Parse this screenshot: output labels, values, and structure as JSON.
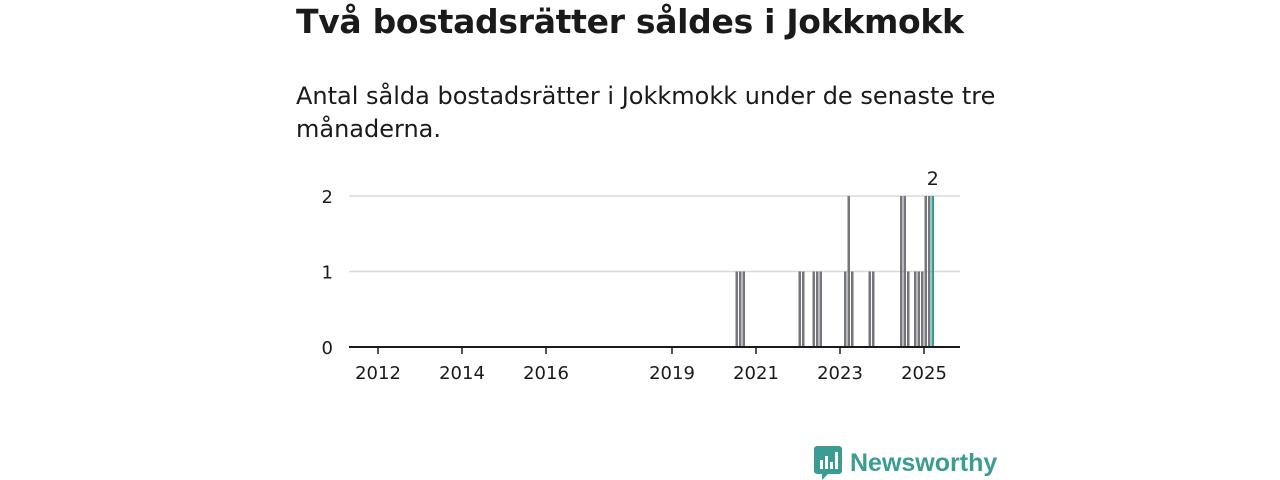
{
  "header": {
    "title": "Två bostadsrätter såldes i Jokkmokk",
    "subtitle": "Antal sålda bostadsrätter i Jokkmokk under de senaste tre månaderna."
  },
  "brand": {
    "name": "Newsworthy",
    "color": "#3a9c92",
    "icon": "chart-bubble-icon"
  },
  "chart_data": {
    "type": "bar",
    "title": "",
    "xlabel": "",
    "ylabel": "",
    "ylim": [
      0,
      2
    ],
    "yticks": [
      "0",
      "1",
      "2"
    ],
    "xticks": [
      "2012",
      "2014",
      "2016",
      "2019",
      "2021",
      "2023",
      "2025"
    ],
    "grid": true,
    "bar_color": "#76757b",
    "highlight_color": "#2aa198",
    "series": [
      {
        "x": [
          "2020-07",
          "2020-08",
          "2020-09",
          "2022-01",
          "2022-02",
          "2022-05",
          "2022-06",
          "2022-07",
          "2023-02",
          "2023-03",
          "2023-04",
          "2023-09",
          "2023-10",
          "2024-06",
          "2024-07",
          "2024-08",
          "2024-10",
          "2024-11",
          "2024-12",
          "2025-01",
          "2025-02",
          "2025-03"
        ],
        "values": [
          1,
          1,
          1,
          1,
          1,
          1,
          1,
          1,
          1,
          2,
          1,
          1,
          1,
          2,
          2,
          1,
          1,
          1,
          1,
          2,
          2,
          2
        ]
      }
    ],
    "highlight": {
      "x": "2025-03",
      "value": 2,
      "label": "2"
    }
  }
}
